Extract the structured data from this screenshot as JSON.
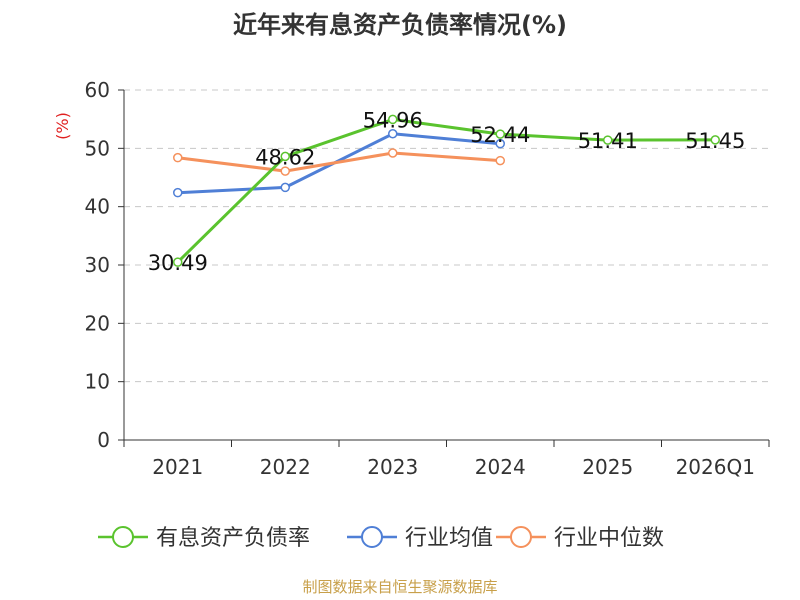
{
  "title": "近年来有息资产负债率情况(%)",
  "source": "制图数据来自恒生聚源数据库",
  "chart_data": {
    "type": "line",
    "title": "近年来有息资产负债率情况(%)",
    "xlabel": "",
    "ylabel": "(%)",
    "categories": [
      "2021",
      "2022",
      "2023",
      "2024",
      "2025",
      "2026Q1"
    ],
    "ylim": [
      0,
      60
    ],
    "yticks": [
      0,
      10,
      20,
      30,
      40,
      50,
      60
    ],
    "grid": true,
    "legend_position": "bottom",
    "series": [
      {
        "name": "有息资产负债率",
        "color": "#5ac32e",
        "values": [
          30.49,
          48.62,
          54.96,
          52.44,
          51.41,
          51.45
        ],
        "labels": [
          "30.49",
          "48.62",
          "54.96",
          "52.44",
          "51.41",
          "51.45"
        ]
      },
      {
        "name": "行业均值",
        "color": "#4f7fd6",
        "values": [
          42.4,
          43.3,
          52.5,
          50.8,
          null,
          null
        ]
      },
      {
        "name": "行业中位数",
        "color": "#f5915c",
        "values": [
          48.4,
          46.1,
          49.2,
          47.9,
          null,
          null
        ]
      }
    ]
  }
}
